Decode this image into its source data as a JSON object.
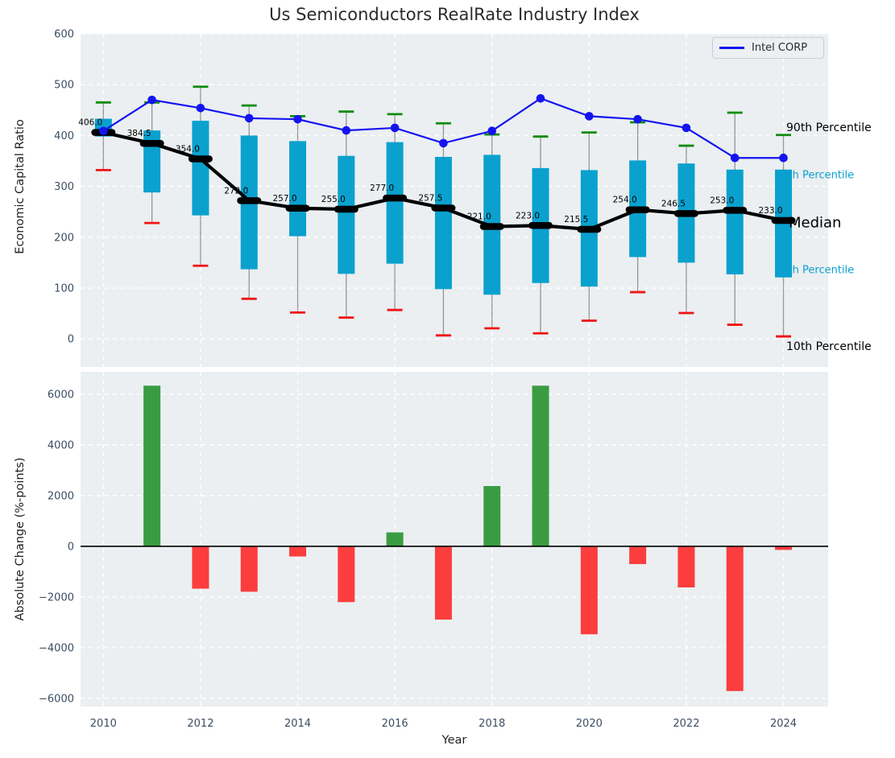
{
  "title": "Us Semiconductors RealRate Industry Index",
  "legend": {
    "entry": "Intel CORP"
  },
  "colors": {
    "axes_bg": "#ebeff1",
    "grid": "#ffffff",
    "box": "#0aa1ce",
    "median": "#000000",
    "intel": "#1414f0",
    "p90_cap": "#0f8c0f",
    "p10_cap": "#f01414",
    "whisker": "rgba(60,60,60,0.5)",
    "bar_positive": "#3a9c42",
    "bar_negative": "#fb3d3d",
    "tick": "#3d4d63",
    "zero_line": "#000000"
  },
  "chart_data": [
    {
      "type": "box-whisker+line",
      "title": "Us Semiconductors RealRate Industry Index",
      "ylabel": "Economic Capital Ratio",
      "x": [
        2010,
        2011,
        2012,
        2013,
        2014,
        2015,
        2016,
        2017,
        2018,
        2019,
        2020,
        2021,
        2022,
        2023,
        2024
      ],
      "median": [
        406.0,
        384.5,
        354.0,
        272.0,
        257.0,
        255.0,
        277.0,
        257.5,
        221.0,
        223.0,
        215.5,
        254.0,
        246.5,
        253.0,
        233.0
      ],
      "p75": [
        433,
        410,
        429,
        400,
        389,
        360,
        387,
        358,
        362,
        336,
        332,
        351,
        345,
        333,
        333
      ],
      "p25": [
        398,
        288,
        243,
        137,
        202,
        128,
        148,
        98,
        87,
        110,
        103,
        161,
        150,
        127,
        121
      ],
      "p90": [
        465,
        465,
        496,
        459,
        438,
        447,
        442,
        424,
        402,
        398,
        406,
        426,
        380,
        445,
        401
      ],
      "p10": [
        332,
        228,
        144,
        79,
        52,
        42,
        57,
        7,
        21,
        11,
        36,
        92,
        51,
        28,
        5
      ],
      "series": [
        {
          "name": "Intel CORP",
          "values": [
            409,
            470,
            454,
            434,
            432,
            410,
            415,
            385,
            409,
            473,
            438,
            432,
            415,
            356,
            356
          ]
        }
      ],
      "median_labels": [
        "406.0",
        "384.5",
        "354.0",
        "272.0",
        "257.0",
        "255.0",
        "277.0",
        "257.5",
        "221.0",
        "223.0",
        "215.5",
        "254.0",
        "246.5",
        "253.0",
        "233.0"
      ],
      "annotations": [
        "90th Percentile",
        "75th Percentile",
        "Median",
        "25th Percentile",
        "10th Percentile"
      ],
      "ylim": [
        -55,
        600
      ],
      "yticks": [
        0,
        100,
        200,
        300,
        400,
        500,
        600
      ],
      "xlim": [
        2009.53,
        2024.92
      ],
      "xticks": [
        2010,
        2012,
        2014,
        2016,
        2018,
        2020,
        2022,
        2024
      ],
      "grid": true,
      "legend_position": "upper right"
    },
    {
      "type": "bar",
      "ylabel": "Absolute Change (%-points)",
      "xlabel": "Year",
      "x": [
        2011,
        2012,
        2013,
        2014,
        2015,
        2016,
        2017,
        2018,
        2019,
        2020,
        2021,
        2022,
        2023,
        2024
      ],
      "values": [
        6340,
        -1670,
        -1790,
        -400,
        -2200,
        550,
        -2890,
        2380,
        6340,
        -3470,
        -700,
        -1620,
        -5710,
        -140
      ],
      "ylim": [
        -6320,
        6890
      ],
      "yticks": [
        -6000,
        -4000,
        -2000,
        0,
        2000,
        4000,
        6000
      ],
      "xlim": [
        2009.53,
        2024.92
      ],
      "xticks": [
        2010,
        2012,
        2014,
        2016,
        2018,
        2020,
        2022,
        2024
      ],
      "grid": true
    }
  ]
}
